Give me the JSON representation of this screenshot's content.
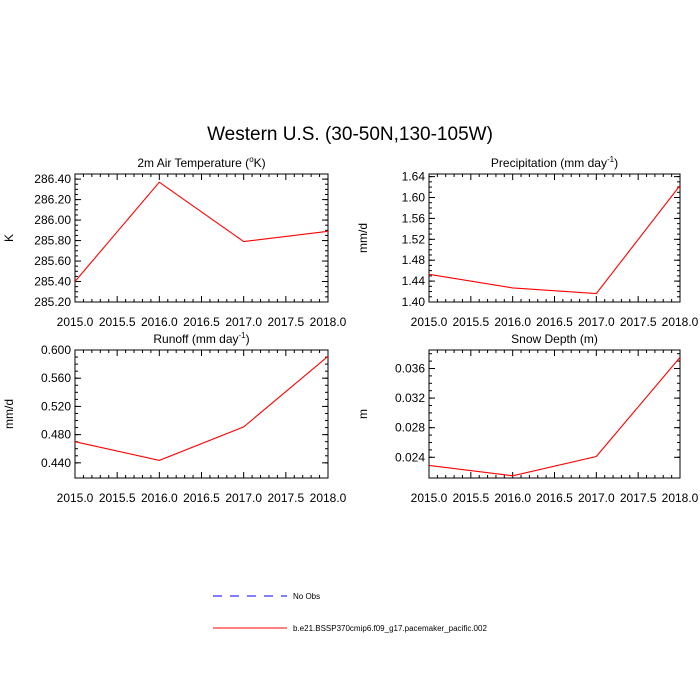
{
  "title": "Western U.S. (30-50N,130-105W)",
  "chart_data": [
    {
      "type": "line",
      "title": "2m Air Temperature (",
      "title_sup": "o",
      "title_end": "K)",
      "ylabel": "K",
      "x": [
        2015.0,
        2016.0,
        2017.0,
        2018.0
      ],
      "xlim": [
        2015.0,
        2018.0
      ],
      "xticks": [
        "2015.0",
        "2015.5",
        "2016.0",
        "2016.5",
        "2017.0",
        "2017.5",
        "2018.0"
      ],
      "ylim": [
        285.2,
        286.45
      ],
      "yticks": [
        "285.20",
        "285.40",
        "285.60",
        "285.80",
        "286.00",
        "286.20",
        "286.40"
      ],
      "series": [
        {
          "values": [
            285.4,
            286.37,
            285.79,
            285.89
          ],
          "color": "#ff0000"
        }
      ]
    },
    {
      "type": "line",
      "title": "Precipitation (mm day",
      "title_sup": "-1",
      "title_end": ")",
      "ylabel": "mm/d",
      "x": [
        2015.0,
        2016.0,
        2017.0,
        2018.0
      ],
      "xlim": [
        2015.0,
        2018.0
      ],
      "xticks": [
        "2015.0",
        "2015.5",
        "2016.0",
        "2016.5",
        "2017.0",
        "2017.5",
        "2018.0"
      ],
      "ylim": [
        1.4,
        1.645
      ],
      "yticks": [
        "1.40",
        "1.44",
        "1.48",
        "1.52",
        "1.56",
        "1.60",
        "1.64"
      ],
      "series": [
        {
          "values": [
            1.453,
            1.427,
            1.416,
            1.623
          ],
          "color": "#ff0000"
        }
      ]
    },
    {
      "type": "line",
      "title": "Runoff (mm day",
      "title_sup": "-1",
      "title_end": ")",
      "ylabel": "mm/d",
      "x": [
        2015.0,
        2016.0,
        2017.0,
        2018.0
      ],
      "xlim": [
        2015.0,
        2018.0
      ],
      "xticks": [
        "2015.0",
        "2015.5",
        "2016.0",
        "2016.5",
        "2017.0",
        "2017.5",
        "2018.0"
      ],
      "ylim": [
        0.4185,
        0.6
      ],
      "yticks": [
        "0.440",
        "0.480",
        "0.520",
        "0.560",
        "0.600"
      ],
      "series": [
        {
          "values": [
            0.47,
            0.4435,
            0.491,
            0.591
          ],
          "color": "#ff0000"
        }
      ]
    },
    {
      "type": "line",
      "title": "Snow Depth (m)",
      "title_sup": "",
      "title_end": "",
      "ylabel": "m",
      "x": [
        2015.0,
        2016.0,
        2017.0,
        2018.0
      ],
      "xlim": [
        2015.0,
        2018.0
      ],
      "xticks": [
        "2015.0",
        "2015.5",
        "2016.0",
        "2016.5",
        "2017.0",
        "2017.5",
        "2018.0"
      ],
      "ylim": [
        0.0212,
        0.0385
      ],
      "yticks": [
        "0.024",
        "0.028",
        "0.032",
        "0.036"
      ],
      "series": [
        {
          "values": [
            0.0229,
            0.0215,
            0.0241,
            0.0375
          ],
          "color": "#ff0000"
        }
      ]
    }
  ],
  "legend": [
    {
      "label": "No Obs",
      "color": "#0000ff",
      "dash": true
    },
    {
      "label": "b.e21.BSSP370cmip6.f09_g17.pacemaker_pacific.002",
      "color": "#ff0000",
      "dash": false
    }
  ]
}
